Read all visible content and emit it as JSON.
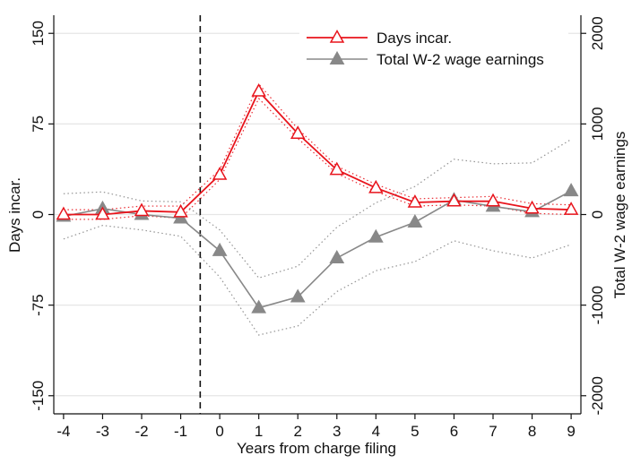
{
  "chart_data": {
    "type": "line",
    "xlabel": "Years from charge filing",
    "ylabel_left": "Days incar.",
    "ylabel_right": "Total W-2 wage earnings",
    "x": [
      -4,
      -3,
      -2,
      -1,
      0,
      1,
      2,
      3,
      4,
      5,
      6,
      7,
      8,
      9
    ],
    "xlim": [
      -4.25,
      9.25
    ],
    "ylim_left": [
      -165,
      165
    ],
    "ylim_right": [
      -2200,
      2200
    ],
    "left_ticks": [
      {
        "value": 150,
        "label": "150"
      },
      {
        "value": 75,
        "label": "75"
      },
      {
        "value": 0,
        "label": "0"
      },
      {
        "value": -75,
        "label": "-75"
      },
      {
        "value": -150,
        "label": "-150"
      }
    ],
    "right_ticks": [
      {
        "value": 2000,
        "label": "2000"
      },
      {
        "value": 1000,
        "label": "1000"
      },
      {
        "value": 0,
        "label": "0"
      },
      {
        "value": -1000,
        "label": "-1000"
      },
      {
        "value": -2000,
        "label": "-2000"
      }
    ],
    "x_ticks": [
      {
        "value": -4,
        "label": "-4"
      },
      {
        "value": -3,
        "label": "-3"
      },
      {
        "value": -2,
        "label": "-2"
      },
      {
        "value": -1,
        "label": "-1"
      },
      {
        "value": 0,
        "label": "0"
      },
      {
        "value": 1,
        "label": "1"
      },
      {
        "value": 2,
        "label": "2"
      },
      {
        "value": 3,
        "label": "3"
      },
      {
        "value": 4,
        "label": "4"
      },
      {
        "value": 5,
        "label": "5"
      },
      {
        "value": 6,
        "label": "6"
      },
      {
        "value": 7,
        "label": "7"
      },
      {
        "value": 8,
        "label": "8"
      },
      {
        "value": 9,
        "label": "9"
      }
    ],
    "reference_line_x": -0.5,
    "grid": true,
    "legend_position": "top-right",
    "series": [
      {
        "name": "Days incar.",
        "axis": "left",
        "color": "#e8141c",
        "marker": "triangle-open",
        "values": [
          0,
          0,
          3,
          2,
          33,
          102,
          67,
          37,
          22,
          10,
          11,
          11,
          5,
          4
        ],
        "ci_upper": [
          4,
          4,
          7,
          7,
          37,
          108,
          71,
          40,
          25,
          13,
          14,
          15,
          9,
          8
        ],
        "ci_lower": [
          -4,
          -4,
          -1,
          -3,
          29,
          96,
          63,
          34,
          19,
          7,
          8,
          7,
          1,
          0
        ]
      },
      {
        "name": "Total W-2 wage earnings",
        "axis": "right",
        "color": "#888888",
        "marker": "triangle-filled",
        "values": [
          -20,
          65,
          0,
          -40,
          -400,
          -1030,
          -910,
          -480,
          -250,
          -85,
          160,
          90,
          30,
          260
        ],
        "ci_upper": [
          230,
          250,
          150,
          140,
          -170,
          -700,
          -570,
          -140,
          130,
          310,
          610,
          560,
          570,
          830
        ],
        "ci_lower": [
          -270,
          -120,
          -170,
          -240,
          -690,
          -1330,
          -1230,
          -850,
          -620,
          -520,
          -290,
          -400,
          -480,
          -330
        ]
      }
    ]
  }
}
